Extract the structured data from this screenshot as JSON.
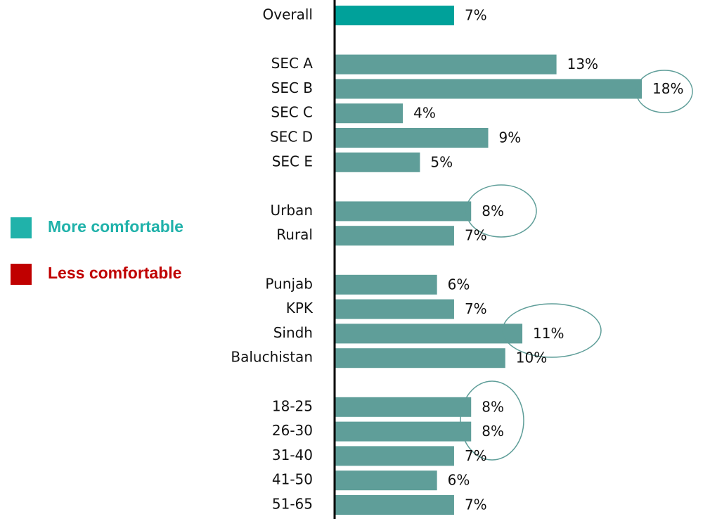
{
  "chart_data": {
    "type": "bar",
    "orientation": "horizontal",
    "xlim": [
      0,
      18
    ],
    "legend": [
      {
        "name": "More comfortable",
        "color": "#20b2aa"
      },
      {
        "name": "Less comfortable",
        "color": "#c00000"
      }
    ],
    "groups": [
      {
        "color": "#00a19a",
        "categories": [
          "Overall"
        ],
        "values": [
          7
        ],
        "value_labels": [
          "7%"
        ]
      },
      {
        "color": "#5f9e99",
        "categories": [
          "SEC A",
          "SEC B",
          "SEC C",
          "SEC D",
          "SEC E"
        ],
        "values": [
          13,
          18,
          4,
          9,
          5
        ],
        "value_labels": [
          "13%",
          "18%",
          "4%",
          "9%",
          "5%"
        ]
      },
      {
        "color": "#5f9e99",
        "categories": [
          "Urban",
          "Rural"
        ],
        "values": [
          8,
          7
        ],
        "value_labels": [
          "8%",
          "7%"
        ]
      },
      {
        "color": "#5f9e99",
        "categories": [
          "Punjab",
          "KPK",
          "Sindh",
          "Baluchistan"
        ],
        "values": [
          6,
          7,
          11,
          10
        ],
        "value_labels": [
          "6%",
          "7%",
          "11%",
          "10%"
        ]
      },
      {
        "color": "#5f9e99",
        "categories": [
          "18-25",
          "26-30",
          "31-40",
          "41-50",
          "51-65"
        ],
        "values": [
          8,
          8,
          7,
          6,
          7
        ],
        "value_labels": [
          "8%",
          "8%",
          "7%",
          "6%",
          "7%"
        ]
      }
    ]
  }
}
